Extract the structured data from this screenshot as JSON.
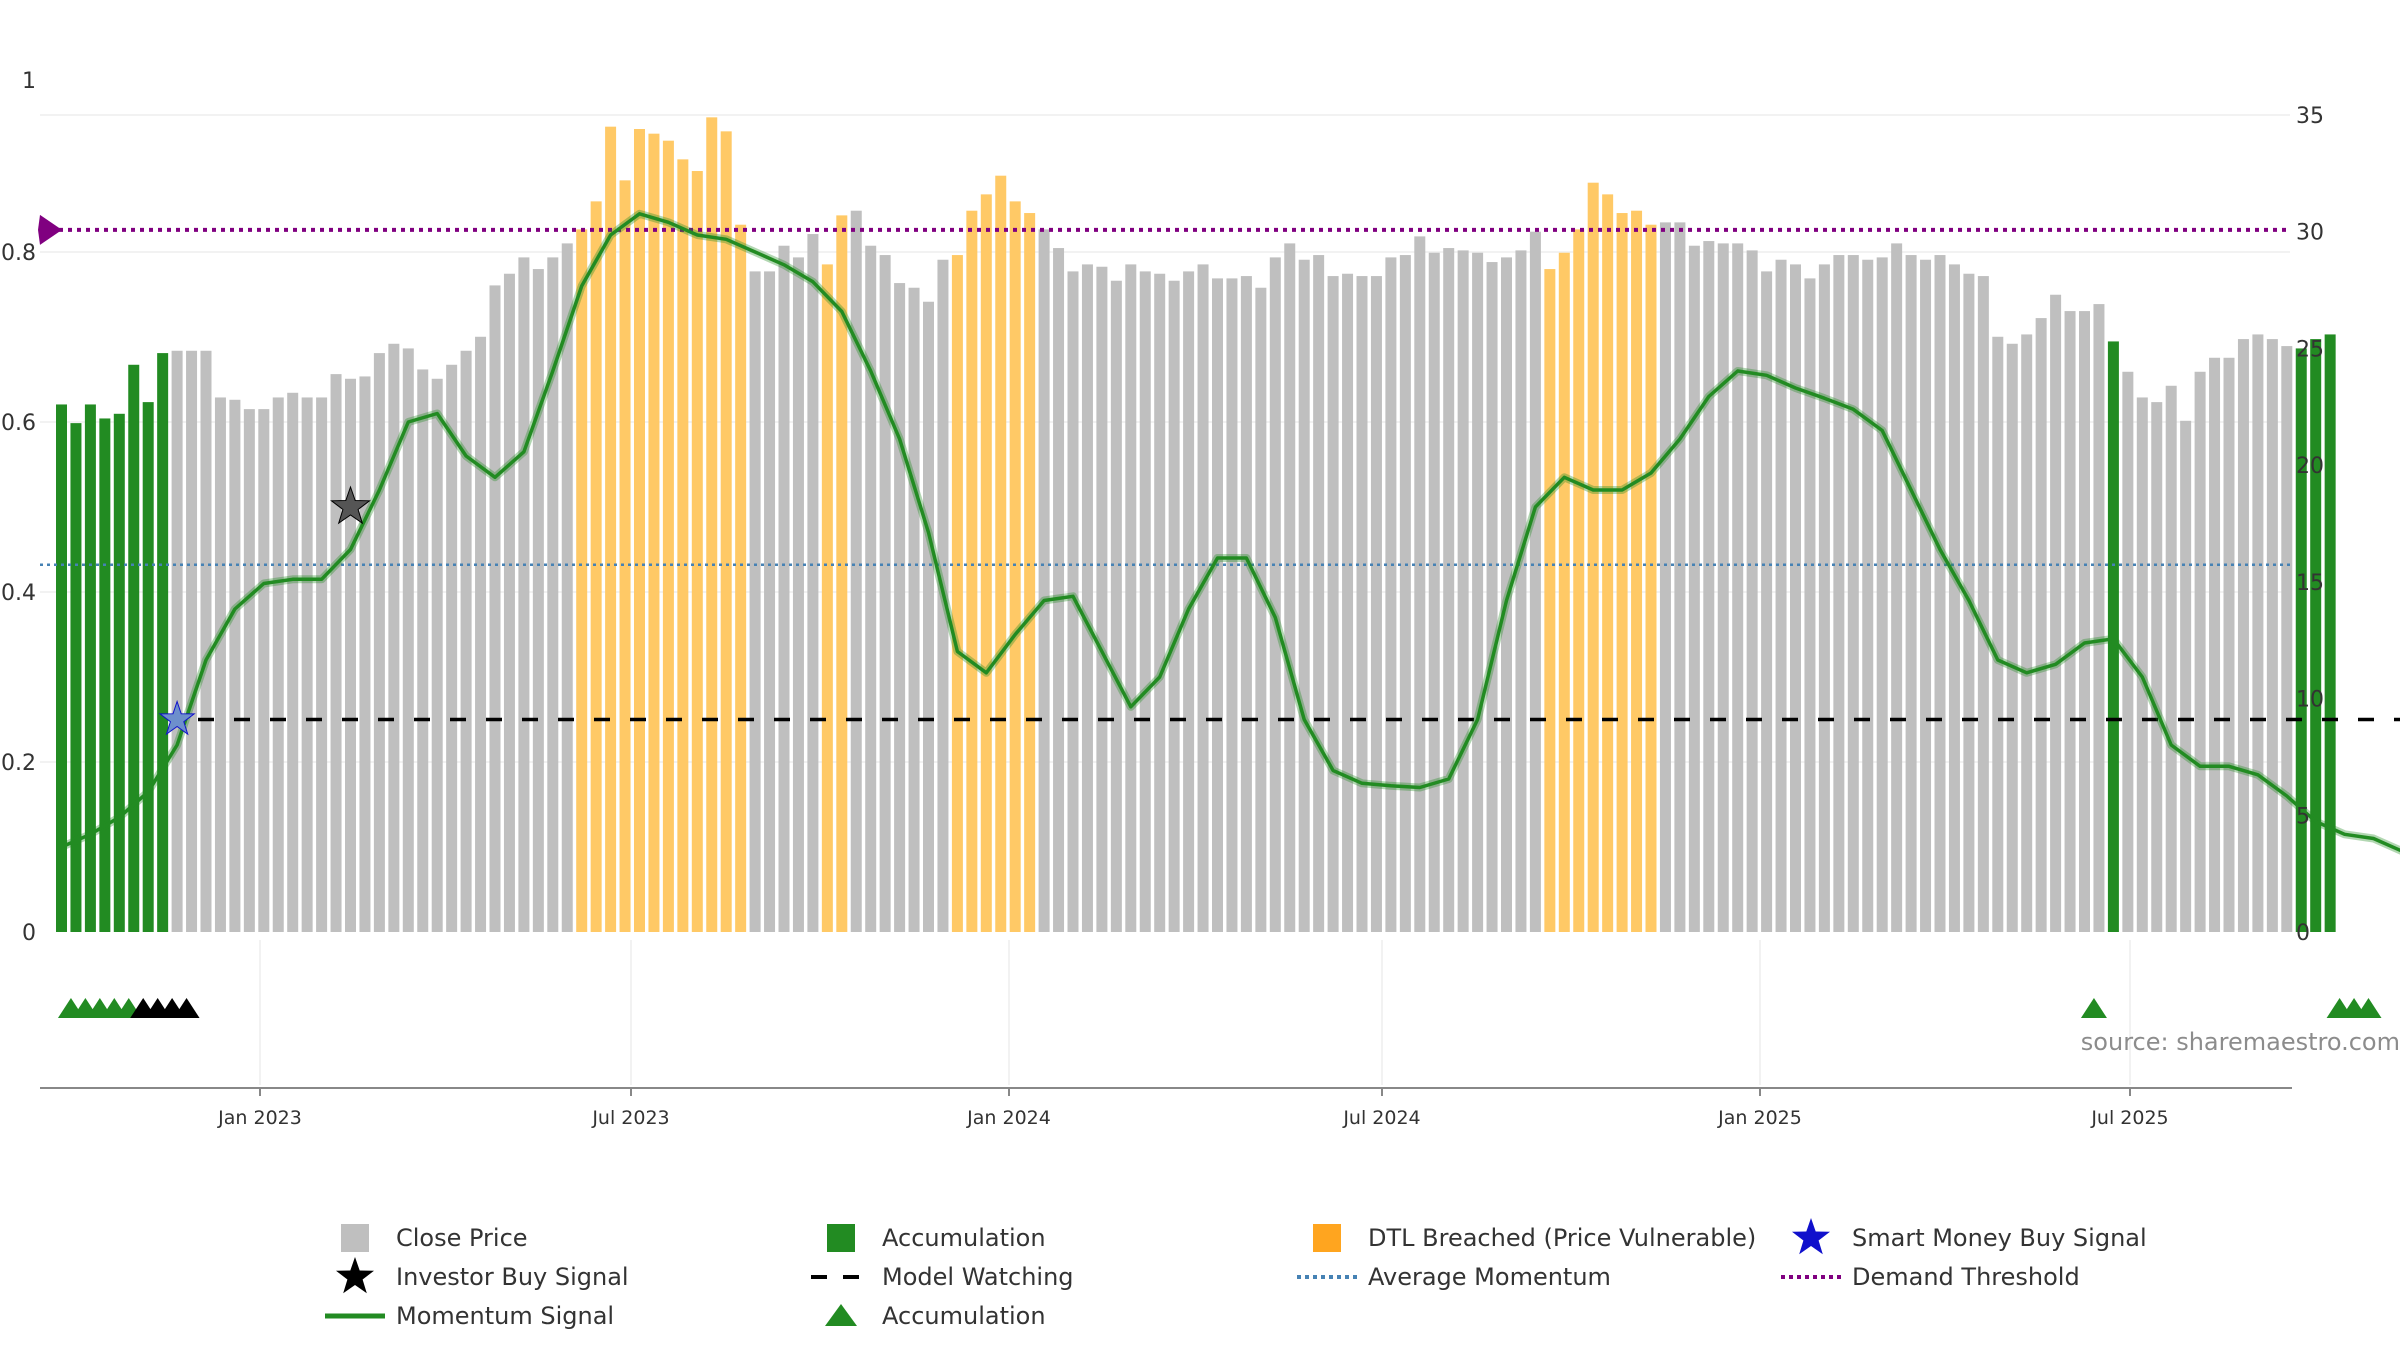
{
  "chart_data": {
    "type": "bar",
    "source_label": "source: sharemaestro.com",
    "left_axis": {
      "ylim": [
        0,
        1
      ],
      "ticks": [
        "0",
        "0.2",
        "0.4",
        "0.6",
        "0.8",
        "1"
      ]
    },
    "right_axis": {
      "ylim": [
        0,
        35
      ],
      "ticks": [
        "0",
        "5",
        "10",
        "15",
        "20",
        "25",
        "30",
        "35"
      ]
    },
    "x_ticks": [
      "Jan 2023",
      "Jul 2023",
      "Jan 2024",
      "Jul 2024",
      "Jan 2025",
      "Jul 2025"
    ],
    "colors": {
      "close_price": "#bfbfbf",
      "accumulation": "#228b22",
      "dtl_breached": "#ffc966",
      "momentum": "#228b22",
      "model_watching": "#000000",
      "average_momentum": "#4682b4",
      "demand_threshold": "#800080",
      "smart_money": "#1010cc"
    },
    "close_price": [
      22.6,
      21.8,
      22.6,
      22.0,
      22.2,
      24.3,
      22.7,
      24.8,
      24.9,
      24.9,
      24.9,
      22.9,
      22.8,
      22.4,
      22.4,
      22.9,
      23.1,
      22.9,
      22.9,
      23.9,
      23.7,
      23.8,
      24.8,
      25.2,
      25.0,
      24.1,
      23.7,
      24.3,
      24.9,
      25.5,
      27.7,
      28.2,
      28.9,
      28.4,
      28.9,
      29.5,
      30.1,
      31.3,
      34.5,
      32.2,
      34.4,
      34.2,
      33.9,
      33.1,
      32.6,
      34.9,
      34.3,
      30.3,
      28.3,
      28.3,
      29.4,
      28.9,
      29.9,
      28.6,
      30.7,
      30.9,
      29.4,
      29.0,
      27.8,
      27.6,
      27.0,
      28.8,
      29.0,
      30.9,
      31.6,
      32.4,
      31.3,
      30.8,
      30.1,
      29.3,
      28.3,
      28.6,
      28.5,
      27.9,
      28.6,
      28.3,
      28.2,
      27.9,
      28.3,
      28.6,
      28.0,
      28.0,
      28.1,
      27.6,
      28.9,
      29.5,
      28.8,
      29.0,
      28.1,
      28.2,
      28.1,
      28.1,
      28.9,
      29.0,
      29.8,
      29.1,
      29.3,
      29.2,
      29.1,
      28.7,
      28.9,
      29.2,
      30.0,
      28.4,
      29.1,
      30.1,
      32.1,
      31.6,
      30.8,
      30.9,
      30.3,
      30.4,
      30.4,
      29.4,
      29.6,
      29.5,
      29.5,
      29.2,
      28.3,
      28.8,
      28.6,
      28.0,
      28.6,
      29.0,
      29.0,
      28.8,
      28.9,
      29.5,
      29.0,
      28.8,
      29.0,
      28.6,
      28.2,
      28.1,
      25.5,
      25.2,
      25.6,
      26.3,
      27.3,
      26.6,
      26.6,
      26.9,
      25.3,
      24.0,
      22.9,
      22.7,
      23.4,
      21.9,
      24.0,
      24.6,
      24.6,
      25.4,
      25.6,
      25.4,
      25.1,
      25.0,
      25.4,
      25.6
    ],
    "accumulation_bars": [
      0,
      1,
      2,
      3,
      4,
      5,
      6,
      7,
      142,
      155,
      156,
      157
    ],
    "dtl_bars": [
      36,
      37,
      38,
      39,
      40,
      41,
      42,
      43,
      44,
      45,
      46,
      47,
      53,
      54,
      62,
      63,
      64,
      65,
      66,
      67,
      103,
      104,
      105,
      106,
      107,
      108,
      109,
      110
    ],
    "momentum_signal": [
      [
        0,
        0.1
      ],
      [
        2,
        0.115
      ],
      [
        4,
        0.135
      ],
      [
        6,
        0.165
      ],
      [
        8,
        0.22
      ],
      [
        10,
        0.32
      ],
      [
        12,
        0.38
      ],
      [
        14,
        0.41
      ],
      [
        16,
        0.415
      ],
      [
        18,
        0.415
      ],
      [
        20,
        0.45
      ],
      [
        22,
        0.52
      ],
      [
        24,
        0.6
      ],
      [
        26,
        0.61
      ],
      [
        28,
        0.56
      ],
      [
        30,
        0.535
      ],
      [
        32,
        0.565
      ],
      [
        34,
        0.66
      ],
      [
        36,
        0.76
      ],
      [
        38,
        0.82
      ],
      [
        40,
        0.845
      ],
      [
        42,
        0.835
      ],
      [
        44,
        0.82
      ],
      [
        46,
        0.815
      ],
      [
        48,
        0.8
      ],
      [
        50,
        0.785
      ],
      [
        52,
        0.765
      ],
      [
        54,
        0.73
      ],
      [
        56,
        0.66
      ],
      [
        58,
        0.58
      ],
      [
        60,
        0.47
      ],
      [
        62,
        0.33
      ],
      [
        64,
        0.305
      ],
      [
        66,
        0.35
      ],
      [
        68,
        0.39
      ],
      [
        70,
        0.395
      ],
      [
        72,
        0.33
      ],
      [
        74,
        0.265
      ],
      [
        76,
        0.3
      ],
      [
        78,
        0.38
      ],
      [
        80,
        0.44
      ],
      [
        82,
        0.44
      ],
      [
        84,
        0.37
      ],
      [
        86,
        0.25
      ],
      [
        88,
        0.19
      ],
      [
        90,
        0.175
      ],
      [
        92,
        0.172
      ],
      [
        94,
        0.17
      ],
      [
        96,
        0.18
      ],
      [
        98,
        0.25
      ],
      [
        100,
        0.39
      ],
      [
        102,
        0.5
      ],
      [
        104,
        0.535
      ],
      [
        106,
        0.52
      ],
      [
        108,
        0.52
      ],
      [
        110,
        0.54
      ],
      [
        112,
        0.58
      ],
      [
        114,
        0.63
      ],
      [
        116,
        0.66
      ],
      [
        118,
        0.655
      ],
      [
        120,
        0.64
      ],
      [
        122,
        0.628
      ],
      [
        124,
        0.615
      ],
      [
        126,
        0.59
      ],
      [
        128,
        0.52
      ],
      [
        130,
        0.45
      ],
      [
        132,
        0.39
      ],
      [
        134,
        0.32
      ],
      [
        136,
        0.305
      ],
      [
        138,
        0.315
      ],
      [
        140,
        0.34
      ],
      [
        142,
        0.345
      ],
      [
        144,
        0.3
      ],
      [
        146,
        0.22
      ],
      [
        148,
        0.195
      ],
      [
        150,
        0.195
      ],
      [
        152,
        0.185
      ],
      [
        154,
        0.16
      ],
      [
        156,
        0.13
      ],
      [
        158,
        0.115
      ],
      [
        160,
        0.11
      ],
      [
        162,
        0.095
      ],
      [
        164,
        0.135
      ],
      [
        166,
        0.15
      ]
    ],
    "model_watching": {
      "value": 0.25,
      "start_bar": 10,
      "end_bar": 166
    },
    "average_momentum": 0.432,
    "demand_threshold": 0.826,
    "investor_buy_signals": [
      [
        20,
        0.5
      ]
    ],
    "smart_money_buy_signals": [
      [
        8,
        0.25
      ]
    ],
    "accumulation_markers": [
      1,
      2,
      3,
      4,
      5,
      6,
      7,
      8,
      9,
      141,
      158,
      159,
      160
    ],
    "legend": [
      {
        "label": "Close Price",
        "symbol": "square",
        "color": "#bfbfbf"
      },
      {
        "label": "Accumulation",
        "symbol": "square",
        "color": "#228b22"
      },
      {
        "label": "DTL Breached (Price Vulnerable)",
        "symbol": "square",
        "color": "#ffa51f"
      },
      {
        "label": "Smart Money Buy Signal",
        "symbol": "star",
        "color": "#1010cc"
      },
      {
        "label": "Investor Buy Signal",
        "symbol": "star",
        "color": "#000000"
      },
      {
        "label": "Model Watching",
        "symbol": "dashed",
        "color": "#000000"
      },
      {
        "label": "Average Momentum",
        "symbol": "dotted",
        "color": "#4682b4"
      },
      {
        "label": "Demand Threshold",
        "symbol": "dotted",
        "color": "#800080"
      },
      {
        "label": "Momentum Signal",
        "symbol": "line",
        "color": "#228b22"
      },
      {
        "label": "Accumulation",
        "symbol": "triangle",
        "color": "#228b22"
      }
    ]
  }
}
